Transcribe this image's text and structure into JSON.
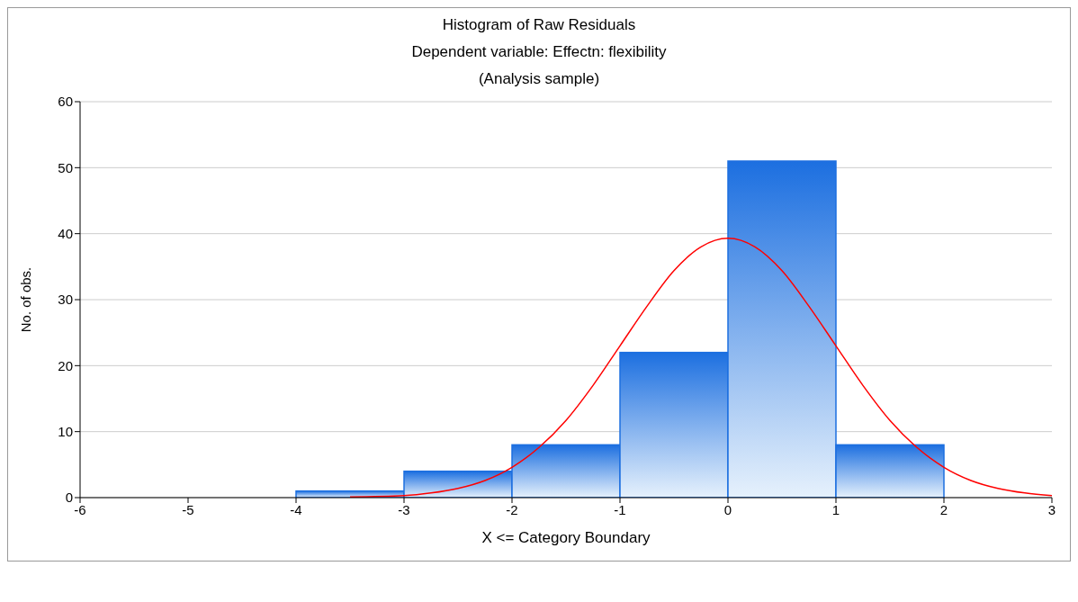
{
  "chart_data": {
    "type": "histogram",
    "title": "Histogram of Raw Residuals",
    "subtitle": "Dependent variable: Effectn: flexibility",
    "annotations": [
      "(Analysis sample)"
    ],
    "xlabel": "X <= Category Boundary",
    "ylabel": "No. of obs.",
    "bins": [
      -4,
      -3,
      -2,
      -1,
      0,
      1,
      2
    ],
    "values": [
      1,
      4,
      8,
      22,
      51,
      8
    ],
    "color": "#1c6fe0",
    "series": [
      {
        "type": "line",
        "color": "#ff0000",
        "x": [
          -3.5,
          -3,
          -2.75,
          -2.5,
          -2.25,
          -2,
          -1.75,
          -1.5,
          -1.25,
          -1,
          -0.75,
          -0.5,
          -0.25,
          0,
          0.25,
          0.5,
          0.75,
          1,
          1.25,
          1.5,
          1.75,
          2,
          2.25,
          2.5,
          2.75,
          3
        ],
        "values": [
          0.1,
          0.3,
          0.7,
          1.4,
          2.6,
          4.6,
          7.6,
          11.7,
          17,
          23,
          29,
          34.4,
          38,
          39.3,
          38,
          34.4,
          29,
          23,
          17,
          11.7,
          7.6,
          4.6,
          2.6,
          1.4,
          0.7,
          0.3
        ]
      }
    ],
    "xlim": [
      -6,
      3
    ],
    "xticks": [
      -6,
      -5,
      -4,
      -3,
      -2,
      -1,
      0,
      1,
      2,
      3
    ],
    "ylim": [
      0,
      60
    ],
    "yticks": [
      0,
      10,
      20,
      30,
      40,
      50,
      60
    ],
    "grid": "y",
    "legend": false,
    "marker": "none"
  }
}
